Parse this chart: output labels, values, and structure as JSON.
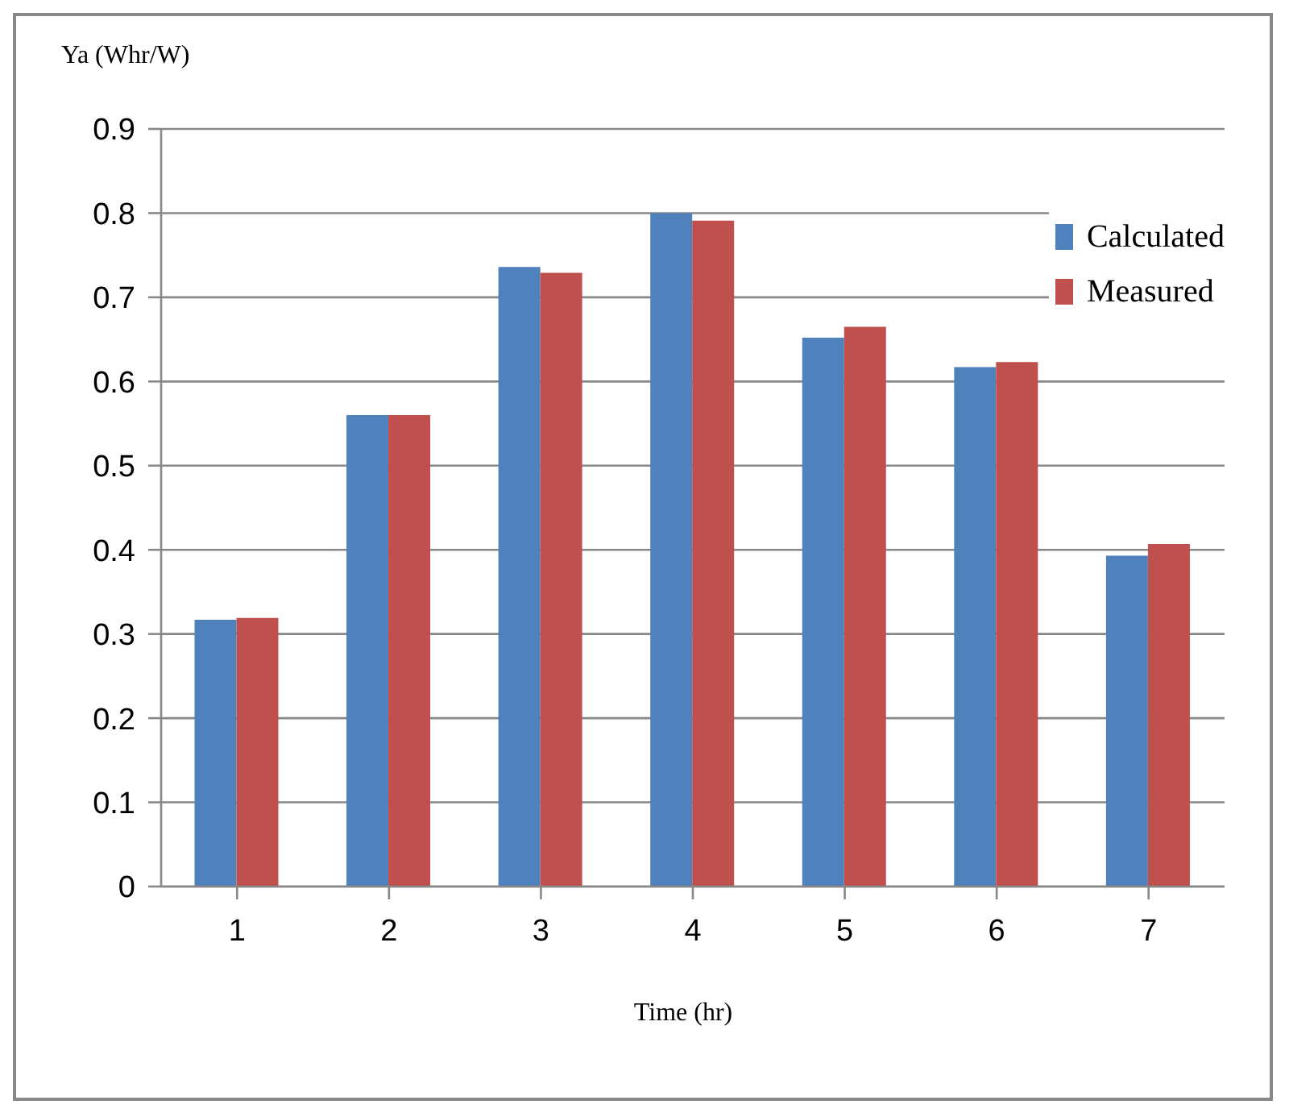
{
  "chart_data": {
    "type": "bar",
    "ylabel": "Ya (Whr/W)",
    "xlabel": "Time (hr)",
    "categories": [
      "1",
      "2",
      "3",
      "4",
      "5",
      "6",
      "7"
    ],
    "series": [
      {
        "name": "Calculated",
        "color": "#4f81bd",
        "values": [
          0.317,
          0.56,
          0.736,
          0.8,
          0.652,
          0.617,
          0.393
        ]
      },
      {
        "name": "Measured",
        "color": "#c0504d",
        "values": [
          0.319,
          0.56,
          0.729,
          0.791,
          0.665,
          0.623,
          0.407
        ]
      }
    ],
    "ylim": [
      0,
      0.9
    ],
    "yticks": [
      0,
      0.1,
      0.2,
      0.3,
      0.4,
      0.5,
      0.6,
      0.7,
      0.8,
      0.9
    ],
    "grid": "y",
    "legend": "top right"
  }
}
